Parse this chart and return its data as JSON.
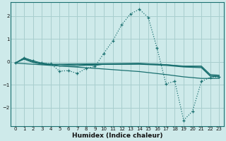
{
  "xlabel": "Humidex (Indice chaleur)",
  "xlim": [
    -0.5,
    23.5
  ],
  "ylim": [
    -2.8,
    2.6
  ],
  "xticks": [
    0,
    1,
    2,
    3,
    4,
    5,
    6,
    7,
    8,
    9,
    10,
    11,
    12,
    13,
    14,
    15,
    16,
    17,
    18,
    19,
    20,
    21,
    22,
    23
  ],
  "yticks": [
    -2,
    -1,
    0,
    1,
    2
  ],
  "bg_color": "#ceeaea",
  "line_color": "#1a7070",
  "grid_color": "#a8cece",
  "dotted_x": [
    0,
    1,
    2,
    3,
    4,
    5,
    6,
    7,
    8,
    9,
    10,
    11,
    12,
    13,
    14,
    15,
    16,
    17,
    18,
    19,
    20,
    21,
    22,
    23
  ],
  "dotted_y": [
    -0.05,
    0.18,
    0.05,
    -0.05,
    -0.08,
    -0.4,
    -0.38,
    -0.5,
    -0.28,
    -0.2,
    0.38,
    0.92,
    1.62,
    2.1,
    2.3,
    1.95,
    0.6,
    -0.95,
    -0.85,
    -2.55,
    -2.15,
    -0.85,
    -0.68,
    -0.65
  ],
  "flat1_x": [
    0,
    1,
    2,
    3,
    4,
    5,
    6,
    7,
    8,
    9,
    10,
    14,
    17,
    19,
    21,
    22,
    23
  ],
  "flat1_y": [
    -0.05,
    0.18,
    0.05,
    -0.05,
    -0.1,
    -0.18,
    -0.15,
    -0.18,
    -0.14,
    -0.15,
    -0.1,
    -0.08,
    -0.12,
    -0.18,
    -0.18,
    -0.55,
    -0.58
  ],
  "flat2_x": [
    0,
    1,
    2,
    3,
    4,
    14,
    17,
    19,
    21,
    22,
    23
  ],
  "flat2_y": [
    -0.05,
    0.15,
    0.0,
    -0.07,
    -0.1,
    -0.06,
    -0.12,
    -0.2,
    -0.22,
    -0.6,
    -0.62
  ],
  "flat3_x": [
    0,
    1,
    2,
    3,
    4,
    14,
    17,
    19,
    21,
    22,
    23
  ],
  "flat3_y": [
    -0.05,
    0.12,
    -0.02,
    -0.1,
    -0.12,
    -0.1,
    -0.15,
    -0.22,
    -0.25,
    -0.62,
    -0.65
  ],
  "diag_x": [
    0,
    4,
    9,
    14,
    17,
    19,
    21,
    22,
    23
  ],
  "diag_y": [
    -0.05,
    -0.15,
    -0.28,
    -0.42,
    -0.55,
    -0.65,
    -0.72,
    -0.72,
    -0.72
  ]
}
